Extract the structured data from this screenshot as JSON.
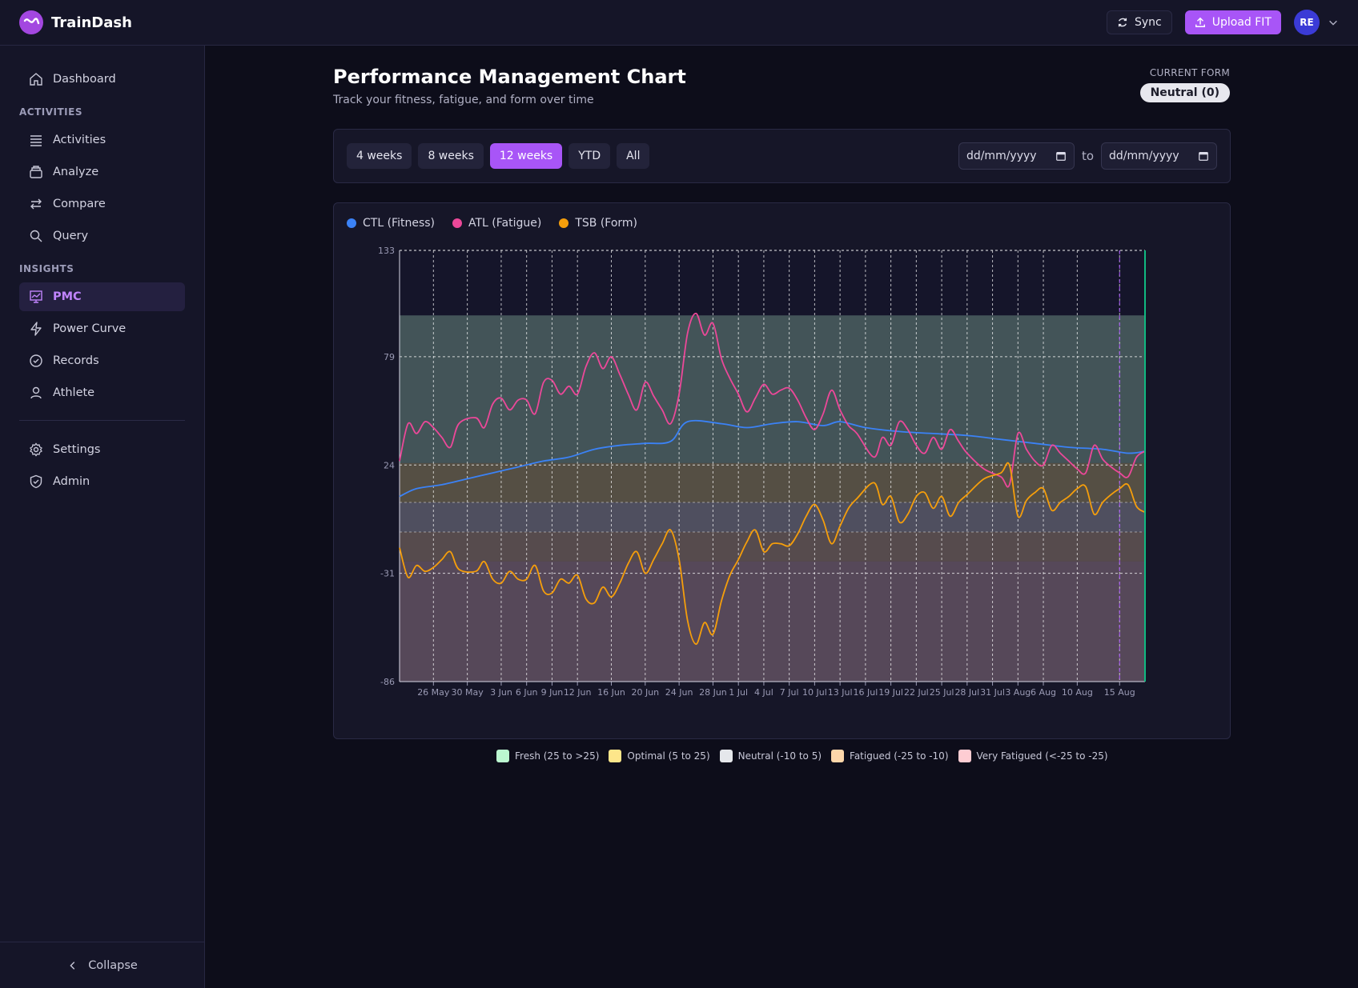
{
  "app": {
    "name": "TrainDash"
  },
  "topbar": {
    "sync_label": "Sync",
    "upload_label": "Upload FIT",
    "avatar_initials": "RE"
  },
  "sidebar": {
    "dashboard": "Dashboard",
    "section_activities": "ACTIVITIES",
    "activities": "Activities",
    "analyze": "Analyze",
    "compare": "Compare",
    "query": "Query",
    "section_insights": "INSIGHTS",
    "pmc": "PMC",
    "power_curve": "Power Curve",
    "records": "Records",
    "athlete": "Athlete",
    "settings": "Settings",
    "admin": "Admin",
    "collapse": "Collapse"
  },
  "page": {
    "title": "Performance Management Chart",
    "subtitle": "Track your fitness, fatigue, and form over time",
    "current_form_label": "CURRENT FORM",
    "current_form_value": "Neutral (0)"
  },
  "range": {
    "options": [
      "4 weeks",
      "8 weeks",
      "12 weeks",
      "YTD",
      "All"
    ],
    "selected": "12 weeks",
    "from_placeholder": "dd/mm/yyyy",
    "to_label": "to",
    "to_placeholder": "dd/mm/yyyy"
  },
  "colors": {
    "accent": "#a855f7",
    "ctl": "#3b82f6",
    "atl": "#ec4899",
    "tsb": "#f59e0b",
    "today_line": "#10b981"
  },
  "chart_data": {
    "type": "line",
    "title": "",
    "xlabel": "",
    "ylabel": "",
    "ylim": [
      -86,
      133
    ],
    "yticks": [
      133,
      79,
      24,
      -31,
      -86
    ],
    "grid": true,
    "legend_position": "top-left",
    "x_start": "2024-05-22",
    "x_end": "2024-08-18",
    "x_ticks": [
      "26 May",
      "30 May",
      "3 Jun",
      "6 Jun",
      "9 Jun",
      "12 Jun",
      "16 Jun",
      "20 Jun",
      "24 Jun",
      "28 Jun",
      "1 Jul",
      "4 Jul",
      "7 Jul",
      "10 Jul",
      "13 Jul",
      "16 Jul",
      "19 Jul",
      "22 Jul",
      "25 Jul",
      "28 Jul",
      "31 Jul",
      "3 Aug",
      "6 Aug",
      "10 Aug",
      "15 Aug"
    ],
    "zones": [
      {
        "name": "Fresh (25 to >25)",
        "from": 25,
        "to": 100,
        "color": "#bbf7d0"
      },
      {
        "name": "Optimal (5 to 25)",
        "from": 5,
        "to": 25,
        "color": "#fde68a"
      },
      {
        "name": "Neutral (-10 to 5)",
        "from": -10,
        "to": 5,
        "color": "#e5e7eb"
      },
      {
        "name": "Fatigued (-25 to -10)",
        "from": -25,
        "to": -10,
        "color": "#fed7aa"
      },
      {
        "name": "Very Fatigued (<-25 to -25)",
        "from": -100,
        "to": -25,
        "color": "#fecdd3"
      }
    ],
    "series": [
      {
        "name": "CTL (Fitness)",
        "color": "#3b82f6",
        "points": [
          [
            "2024-05-22",
            8
          ],
          [
            "2024-05-24",
            12
          ],
          [
            "2024-05-27",
            14
          ],
          [
            "2024-05-30",
            17
          ],
          [
            "2024-06-02",
            20
          ],
          [
            "2024-06-05",
            23
          ],
          [
            "2024-06-08",
            26
          ],
          [
            "2024-06-11",
            28
          ],
          [
            "2024-06-14",
            32
          ],
          [
            "2024-06-17",
            34
          ],
          [
            "2024-06-20",
            35
          ],
          [
            "2024-06-23",
            36
          ],
          [
            "2024-06-25",
            46
          ],
          [
            "2024-06-29",
            45
          ],
          [
            "2024-07-02",
            43
          ],
          [
            "2024-07-05",
            45
          ],
          [
            "2024-07-08",
            46
          ],
          [
            "2024-07-11",
            44
          ],
          [
            "2024-07-13",
            46
          ],
          [
            "2024-07-16",
            43
          ],
          [
            "2024-07-20",
            41
          ],
          [
            "2024-07-24",
            40
          ],
          [
            "2024-07-28",
            39
          ],
          [
            "2024-08-01",
            37
          ],
          [
            "2024-08-05",
            35
          ],
          [
            "2024-08-09",
            33
          ],
          [
            "2024-08-13",
            32
          ],
          [
            "2024-08-16",
            30
          ],
          [
            "2024-08-18",
            31
          ]
        ]
      },
      {
        "name": "ATL (Fatigue)",
        "color": "#ec4899",
        "points": [
          [
            "2024-05-22",
            26
          ],
          [
            "2024-05-23",
            45
          ],
          [
            "2024-05-24",
            40
          ],
          [
            "2024-05-25",
            46
          ],
          [
            "2024-05-26",
            43
          ],
          [
            "2024-05-27",
            38
          ],
          [
            "2024-05-28",
            33
          ],
          [
            "2024-05-29",
            45
          ],
          [
            "2024-05-31",
            48
          ],
          [
            "2024-06-01",
            43
          ],
          [
            "2024-06-02",
            55
          ],
          [
            "2024-06-03",
            58
          ],
          [
            "2024-06-04",
            52
          ],
          [
            "2024-06-05",
            57
          ],
          [
            "2024-06-06",
            57
          ],
          [
            "2024-06-07",
            50
          ],
          [
            "2024-06-08",
            66
          ],
          [
            "2024-06-09",
            67
          ],
          [
            "2024-06-10",
            60
          ],
          [
            "2024-06-11",
            64
          ],
          [
            "2024-06-12",
            60
          ],
          [
            "2024-06-13",
            74
          ],
          [
            "2024-06-14",
            81
          ],
          [
            "2024-06-15",
            73
          ],
          [
            "2024-06-16",
            79
          ],
          [
            "2024-06-17",
            70
          ],
          [
            "2024-06-18",
            60
          ],
          [
            "2024-06-19",
            52
          ],
          [
            "2024-06-20",
            66
          ],
          [
            "2024-06-21",
            59
          ],
          [
            "2024-06-22",
            52
          ],
          [
            "2024-06-23",
            45
          ],
          [
            "2024-06-24",
            60
          ],
          [
            "2024-06-25",
            91
          ],
          [
            "2024-06-26",
            101
          ],
          [
            "2024-06-27",
            90
          ],
          [
            "2024-06-28",
            96
          ],
          [
            "2024-06-29",
            78
          ],
          [
            "2024-06-30",
            68
          ],
          [
            "2024-07-01",
            60
          ],
          [
            "2024-07-02",
            51
          ],
          [
            "2024-07-03",
            58
          ],
          [
            "2024-07-04",
            65
          ],
          [
            "2024-07-05",
            60
          ],
          [
            "2024-07-06",
            62
          ],
          [
            "2024-07-07",
            63
          ],
          [
            "2024-07-08",
            57
          ],
          [
            "2024-07-09",
            48
          ],
          [
            "2024-07-10",
            42
          ],
          [
            "2024-07-11",
            50
          ],
          [
            "2024-07-12",
            62
          ],
          [
            "2024-07-13",
            52
          ],
          [
            "2024-07-14",
            44
          ],
          [
            "2024-07-15",
            40
          ],
          [
            "2024-07-17",
            28
          ],
          [
            "2024-07-18",
            38
          ],
          [
            "2024-07-19",
            34
          ],
          [
            "2024-07-20",
            46
          ],
          [
            "2024-07-21",
            42
          ],
          [
            "2024-07-22",
            34
          ],
          [
            "2024-07-23",
            30
          ],
          [
            "2024-07-24",
            38
          ],
          [
            "2024-07-25",
            32
          ],
          [
            "2024-07-26",
            42
          ],
          [
            "2024-07-27",
            36
          ],
          [
            "2024-07-28",
            30
          ],
          [
            "2024-07-30",
            22
          ],
          [
            "2024-08-01",
            18
          ],
          [
            "2024-08-02",
            14
          ],
          [
            "2024-08-03",
            40
          ],
          [
            "2024-08-04",
            32
          ],
          [
            "2024-08-05",
            26
          ],
          [
            "2024-08-06",
            24
          ],
          [
            "2024-08-07",
            34
          ],
          [
            "2024-08-08",
            30
          ],
          [
            "2024-08-09",
            26
          ],
          [
            "2024-08-10",
            22
          ],
          [
            "2024-08-11",
            20
          ],
          [
            "2024-08-12",
            34
          ],
          [
            "2024-08-13",
            27
          ],
          [
            "2024-08-14",
            23
          ],
          [
            "2024-08-15",
            20
          ],
          [
            "2024-08-16",
            18
          ],
          [
            "2024-08-17",
            28
          ],
          [
            "2024-08-18",
            31
          ]
        ]
      },
      {
        "name": "TSB (Form)",
        "color": "#f59e0b",
        "points": [
          [
            "2024-05-22",
            -18
          ],
          [
            "2024-05-23",
            -33
          ],
          [
            "2024-05-24",
            -27
          ],
          [
            "2024-05-25",
            -30
          ],
          [
            "2024-05-26",
            -28
          ],
          [
            "2024-05-27",
            -24
          ],
          [
            "2024-05-28",
            -20
          ],
          [
            "2024-05-29",
            -29
          ],
          [
            "2024-05-31",
            -30
          ],
          [
            "2024-06-01",
            -25
          ],
          [
            "2024-06-02",
            -34
          ],
          [
            "2024-06-03",
            -36
          ],
          [
            "2024-06-04",
            -30
          ],
          [
            "2024-06-05",
            -34
          ],
          [
            "2024-06-06",
            -34
          ],
          [
            "2024-06-07",
            -27
          ],
          [
            "2024-06-08",
            -40
          ],
          [
            "2024-06-09",
            -41
          ],
          [
            "2024-06-10",
            -34
          ],
          [
            "2024-06-11",
            -36
          ],
          [
            "2024-06-12",
            -32
          ],
          [
            "2024-06-13",
            -44
          ],
          [
            "2024-06-14",
            -46
          ],
          [
            "2024-06-15",
            -38
          ],
          [
            "2024-06-16",
            -43
          ],
          [
            "2024-06-17",
            -36
          ],
          [
            "2024-06-18",
            -26
          ],
          [
            "2024-06-19",
            -20
          ],
          [
            "2024-06-20",
            -31
          ],
          [
            "2024-06-21",
            -24
          ],
          [
            "2024-06-22",
            -16
          ],
          [
            "2024-06-23",
            -9
          ],
          [
            "2024-06-24",
            -24
          ],
          [
            "2024-06-25",
            -55
          ],
          [
            "2024-06-26",
            -67
          ],
          [
            "2024-06-27",
            -56
          ],
          [
            "2024-06-28",
            -62
          ],
          [
            "2024-06-29",
            -45
          ],
          [
            "2024-06-30",
            -32
          ],
          [
            "2024-07-01",
            -24
          ],
          [
            "2024-07-02",
            -15
          ],
          [
            "2024-07-03",
            -9
          ],
          [
            "2024-07-04",
            -20
          ],
          [
            "2024-07-05",
            -16
          ],
          [
            "2024-07-06",
            -16
          ],
          [
            "2024-07-07",
            -17
          ],
          [
            "2024-07-08",
            -11
          ],
          [
            "2024-07-09",
            -2
          ],
          [
            "2024-07-10",
            4
          ],
          [
            "2024-07-11",
            -4
          ],
          [
            "2024-07-12",
            -16
          ],
          [
            "2024-07-13",
            -7
          ],
          [
            "2024-07-14",
            2
          ],
          [
            "2024-07-15",
            7
          ],
          [
            "2024-07-17",
            15
          ],
          [
            "2024-07-18",
            4
          ],
          [
            "2024-07-19",
            8
          ],
          [
            "2024-07-20",
            -5
          ],
          [
            "2024-07-21",
            -1
          ],
          [
            "2024-07-22",
            8
          ],
          [
            "2024-07-23",
            10
          ],
          [
            "2024-07-24",
            2
          ],
          [
            "2024-07-25",
            8
          ],
          [
            "2024-07-26",
            -2
          ],
          [
            "2024-07-27",
            5
          ],
          [
            "2024-07-28",
            9
          ],
          [
            "2024-07-30",
            17
          ],
          [
            "2024-08-01",
            20
          ],
          [
            "2024-08-02",
            24
          ],
          [
            "2024-08-03",
            -2
          ],
          [
            "2024-08-04",
            6
          ],
          [
            "2024-08-05",
            10
          ],
          [
            "2024-08-06",
            12
          ],
          [
            "2024-08-07",
            1
          ],
          [
            "2024-08-08",
            5
          ],
          [
            "2024-08-09",
            8
          ],
          [
            "2024-08-10",
            12
          ],
          [
            "2024-08-11",
            13
          ],
          [
            "2024-08-12",
            -1
          ],
          [
            "2024-08-13",
            5
          ],
          [
            "2024-08-14",
            9
          ],
          [
            "2024-08-15",
            12
          ],
          [
            "2024-08-16",
            14
          ],
          [
            "2024-08-17",
            3
          ],
          [
            "2024-08-18",
            0
          ]
        ]
      }
    ],
    "markers": [
      {
        "date": "2024-08-15",
        "style": "dashed",
        "color": "#a855f7"
      },
      {
        "date": "2024-08-18",
        "style": "solid",
        "color": "#10b981"
      }
    ]
  }
}
